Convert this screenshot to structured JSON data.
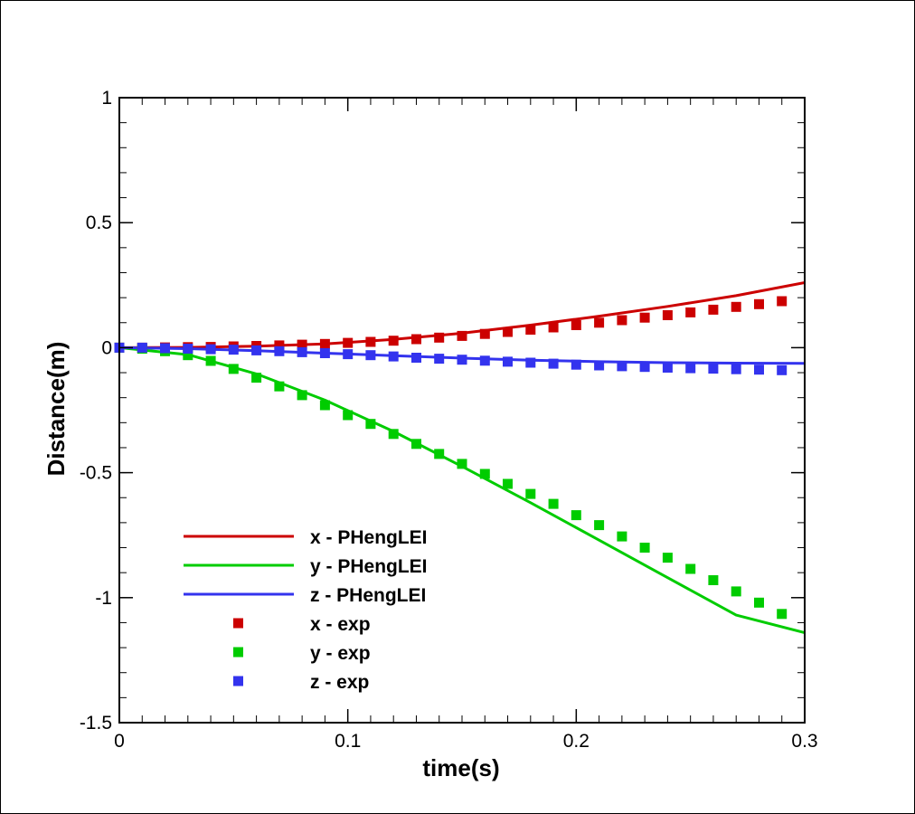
{
  "chart_data": {
    "type": "line",
    "title": "",
    "xlabel": "time(s)",
    "ylabel": "Distance(m)",
    "xlim": [
      0,
      0.3
    ],
    "ylim": [
      -1.5,
      1
    ],
    "x_ticks": [
      {
        "value": 0,
        "label": "0"
      },
      {
        "value": 0.1,
        "label": "0.1"
      },
      {
        "value": 0.2,
        "label": "0.2"
      },
      {
        "value": 0.3,
        "label": "0.3"
      }
    ],
    "y_ticks": [
      {
        "value": 1,
        "label": "1"
      },
      {
        "value": 0.5,
        "label": "0.5"
      },
      {
        "value": 0,
        "label": "0"
      },
      {
        "value": -0.5,
        "label": "-0.5"
      },
      {
        "value": -1,
        "label": "-1"
      },
      {
        "value": -1.5,
        "label": "-1.5"
      }
    ],
    "x_minor_step": 0.01,
    "y_minor_step": 0.1,
    "grid": false,
    "legend_position": "bottom-left",
    "series": [
      {
        "name": "x - PHengLEI",
        "kind": "line",
        "color": "#cc0000",
        "x": [
          0,
          0.03,
          0.06,
          0.09,
          0.12,
          0.15,
          0.18,
          0.21,
          0.24,
          0.27,
          0.3
        ],
        "y": [
          0,
          0.001,
          0.006,
          0.015,
          0.033,
          0.058,
          0.09,
          0.126,
          0.165,
          0.208,
          0.26
        ]
      },
      {
        "name": "y - PHengLEI",
        "kind": "line",
        "color": "#00cc00",
        "x": [
          0,
          0.03,
          0.06,
          0.09,
          0.12,
          0.15,
          0.18,
          0.21,
          0.24,
          0.27,
          0.3
        ],
        "y": [
          0,
          -0.028,
          -0.105,
          -0.21,
          -0.335,
          -0.475,
          -0.62,
          -0.77,
          -0.92,
          -1.07,
          -1.14
        ]
      },
      {
        "name": "z - PHengLEI",
        "kind": "line",
        "color": "#3333ee",
        "x": [
          0,
          0.03,
          0.06,
          0.09,
          0.12,
          0.15,
          0.18,
          0.21,
          0.24,
          0.27,
          0.3
        ],
        "y": [
          0,
          -0.004,
          -0.012,
          -0.022,
          -0.032,
          -0.042,
          -0.05,
          -0.056,
          -0.06,
          -0.062,
          -0.063
        ]
      },
      {
        "name": "x - exp",
        "kind": "marker",
        "color": "#cc0000",
        "x": [
          0,
          0.01,
          0.02,
          0.03,
          0.04,
          0.05,
          0.06,
          0.07,
          0.08,
          0.09,
          0.1,
          0.11,
          0.12,
          0.13,
          0.14,
          0.15,
          0.16,
          0.17,
          0.18,
          0.19,
          0.2,
          0.21,
          0.22,
          0.23,
          0.24,
          0.25,
          0.26,
          0.27,
          0.28,
          0.29
        ],
        "y": [
          0,
          0,
          0.001,
          0.002,
          0.003,
          0.005,
          0.007,
          0.009,
          0.012,
          0.015,
          0.019,
          0.023,
          0.028,
          0.034,
          0.04,
          0.047,
          0.055,
          0.063,
          0.072,
          0.081,
          0.09,
          0.1,
          0.11,
          0.12,
          0.13,
          0.141,
          0.152,
          0.163,
          0.174,
          0.186
        ]
      },
      {
        "name": "y - exp",
        "kind": "marker",
        "color": "#00cc00",
        "x": [
          0,
          0.01,
          0.02,
          0.03,
          0.04,
          0.05,
          0.06,
          0.07,
          0.08,
          0.09,
          0.1,
          0.11,
          0.12,
          0.13,
          0.14,
          0.15,
          0.16,
          0.17,
          0.18,
          0.19,
          0.2,
          0.21,
          0.22,
          0.23,
          0.24,
          0.25,
          0.26,
          0.27,
          0.28,
          0.29
        ],
        "y": [
          0,
          -0.004,
          -0.014,
          -0.03,
          -0.053,
          -0.085,
          -0.12,
          -0.155,
          -0.19,
          -0.23,
          -0.27,
          -0.305,
          -0.345,
          -0.385,
          -0.425,
          -0.465,
          -0.505,
          -0.545,
          -0.585,
          -0.625,
          -0.67,
          -0.71,
          -0.755,
          -0.8,
          -0.84,
          -0.885,
          -0.93,
          -0.975,
          -1.02,
          -1.065
        ]
      },
      {
        "name": "z - exp",
        "kind": "marker",
        "color": "#3333ee",
        "x": [
          0,
          0.01,
          0.02,
          0.03,
          0.04,
          0.05,
          0.06,
          0.07,
          0.08,
          0.09,
          0.1,
          0.11,
          0.12,
          0.13,
          0.14,
          0.15,
          0.16,
          0.17,
          0.18,
          0.19,
          0.2,
          0.21,
          0.22,
          0.23,
          0.24,
          0.25,
          0.26,
          0.27,
          0.28,
          0.29
        ],
        "y": [
          0,
          0,
          -0.002,
          -0.004,
          -0.006,
          -0.008,
          -0.011,
          -0.014,
          -0.018,
          -0.022,
          -0.026,
          -0.03,
          -0.035,
          -0.04,
          -0.044,
          -0.048,
          -0.052,
          -0.056,
          -0.06,
          -0.064,
          -0.068,
          -0.071,
          -0.074,
          -0.077,
          -0.08,
          -0.082,
          -0.084,
          -0.086,
          -0.088,
          -0.09
        ]
      }
    ]
  }
}
